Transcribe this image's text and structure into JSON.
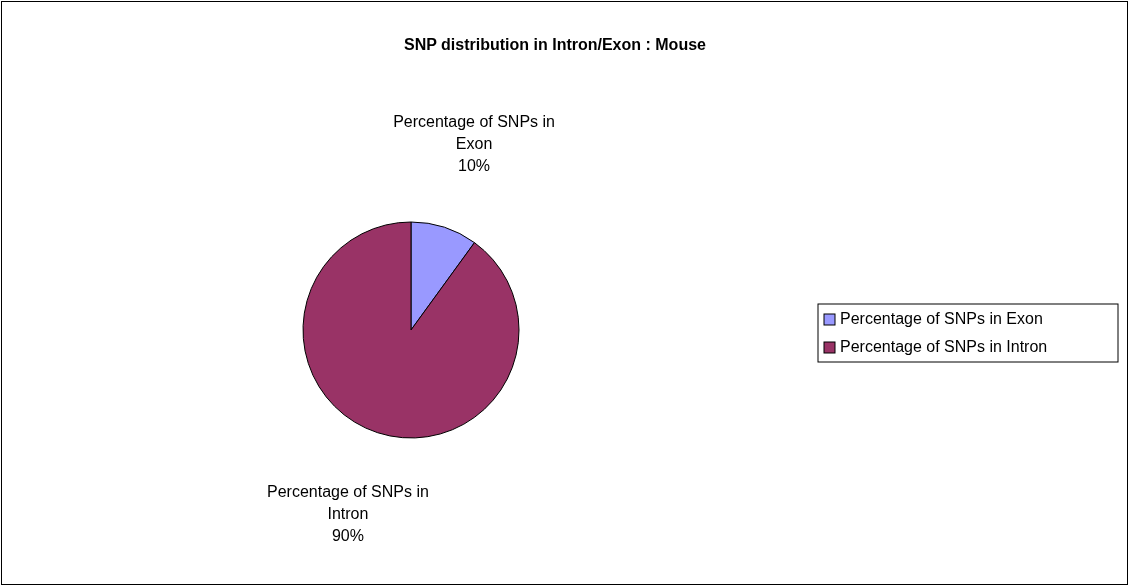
{
  "chart_data": {
    "type": "pie",
    "title": "SNP distribution in Intron/Exon : Mouse",
    "categories": [
      "Percentage of SNPs in Exon",
      "Percentage of SNPs in Intron"
    ],
    "values": [
      10,
      90
    ],
    "colors": [
      "#9999ff",
      "#993366"
    ],
    "value_labels": [
      "10%",
      "90%"
    ],
    "legend": "right"
  }
}
